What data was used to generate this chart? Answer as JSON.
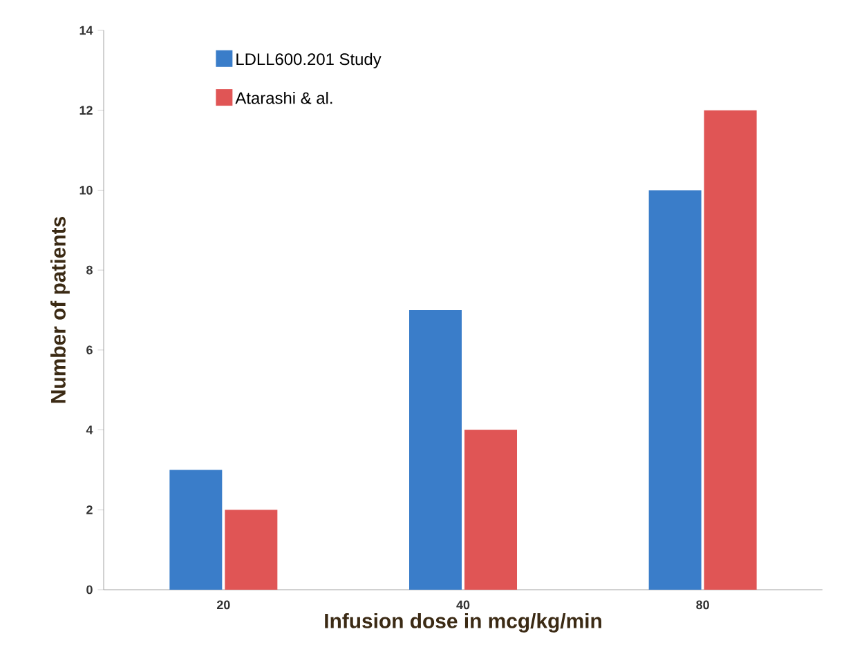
{
  "chart_data": {
    "type": "bar",
    "xlabel": "Infusion dose in mcg/kg/min",
    "ylabel": "Number of patients",
    "categories": [
      "20",
      "40",
      "80"
    ],
    "series": [
      {
        "name": "LDLL600.201 Study",
        "color": "#3a7dc9",
        "values": [
          3,
          7,
          10
        ]
      },
      {
        "name": "Atarashi & al.",
        "color": "#e05555",
        "values": [
          2,
          4,
          12
        ]
      }
    ],
    "ylim": [
      0,
      14
    ],
    "yticks": [
      0,
      2,
      4,
      6,
      8,
      10,
      12,
      14
    ],
    "grid": false,
    "legend": "top left"
  }
}
